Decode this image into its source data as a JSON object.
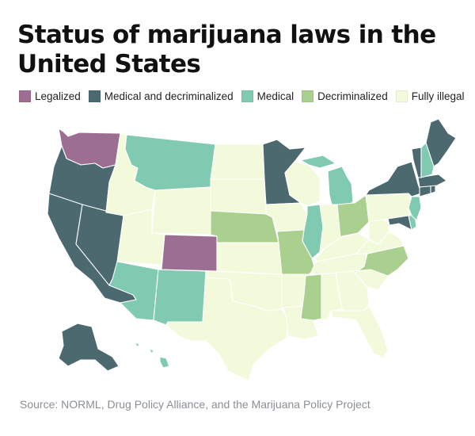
{
  "title": "Status of marijuana laws in the United States",
  "legend": [
    {
      "key": "legalized",
      "label": "Legalized",
      "color": "#9b6e92"
    },
    {
      "key": "medical_decrim",
      "label": "Medical and decriminalized",
      "color": "#4c6970"
    },
    {
      "key": "medical",
      "label": "Medical",
      "color": "#7fcab0"
    },
    {
      "key": "decrim",
      "label": "Decriminalized",
      "color": "#a9d08f"
    },
    {
      "key": "illegal",
      "label": "Fully illegal",
      "color": "#f3fadc"
    }
  ],
  "states": {
    "WA": "legalized",
    "CO": "legalized",
    "OR": "medical_decrim",
    "CA": "medical_decrim",
    "NV": "medical_decrim",
    "MN": "medical_decrim",
    "NY": "medical_decrim",
    "VT": "medical_decrim",
    "ME": "medical_decrim",
    "MA": "medical_decrim",
    "CT": "medical_decrim",
    "RI": "medical_decrim",
    "MD": "medical_decrim",
    "AK": "medical_decrim",
    "MT": "medical",
    "AZ": "medical",
    "NM": "medical",
    "IL": "medical",
    "MI": "medical",
    "NH": "medical",
    "NJ": "medical",
    "DE": "medical",
    "HI": "medical",
    "NE": "decrim",
    "MO": "decrim",
    "MS": "decrim",
    "OH": "decrim",
    "NC": "decrim",
    "ID": "illegal",
    "WY": "illegal",
    "UT": "illegal",
    "ND": "illegal",
    "SD": "illegal",
    "KS": "illegal",
    "OK": "illegal",
    "TX": "illegal",
    "IA": "illegal",
    "WI": "illegal",
    "AR": "illegal",
    "LA": "illegal",
    "IN": "illegal",
    "KY": "illegal",
    "TN": "illegal",
    "AL": "illegal",
    "GA": "illegal",
    "FL": "illegal",
    "SC": "illegal",
    "VA": "illegal",
    "WV": "illegal",
    "PA": "illegal"
  },
  "source": "Source: NORML, Drug Policy Alliance, and the Marijuana Policy Project"
}
